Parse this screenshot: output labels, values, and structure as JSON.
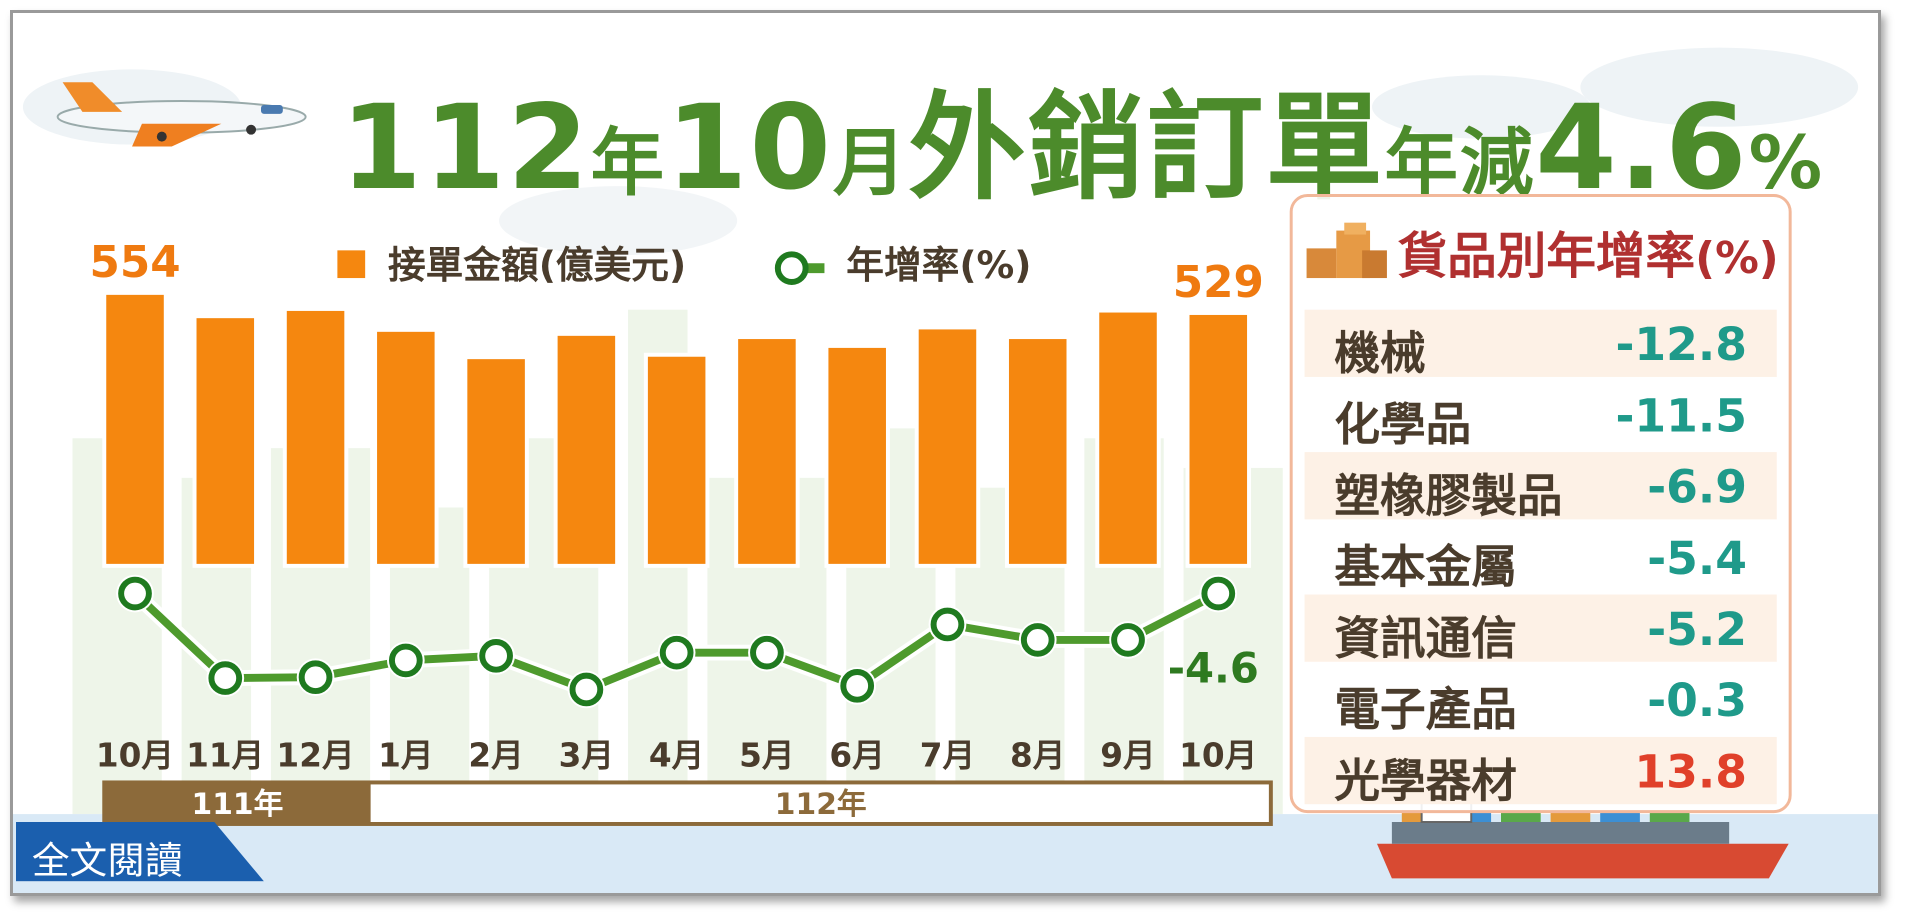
{
  "title": {
    "part1": "112",
    "part2": "年",
    "part3": "10",
    "part4": "月",
    "part5": "外銷訂單",
    "part6": "年減",
    "part7": "4.6",
    "part8": "%"
  },
  "legend": {
    "bar_label": "接單金額(億美元)",
    "line_label": "年增率(%)"
  },
  "chart_data": {
    "type": "bar",
    "categories": [
      "10月",
      "11月",
      "12月",
      "1月",
      "2月",
      "3月",
      "4月",
      "5月",
      "6月",
      "7月",
      "8月",
      "9月",
      "10月"
    ],
    "series": [
      {
        "name": "接單金額(億美元)",
        "values": [
          554,
          525,
          534,
          508,
          474,
          503,
          477,
          499,
          488,
          511,
          499,
          532,
          529
        ]
      },
      {
        "name": "年增率(%)",
        "values": [
          -4.6,
          -23.2,
          -23.0,
          -19.3,
          -18.3,
          -25.7,
          -17.6,
          -17.6,
          -24.9,
          -11.4,
          -14.8,
          -14.8,
          -4.6
        ]
      }
    ],
    "value_labels": {
      "first": "554",
      "last": "529",
      "last_rate": "-4.6"
    },
    "year_groups": [
      {
        "label": "111年",
        "span": 3
      },
      {
        "label": "112年",
        "span": 10
      }
    ],
    "colors": {
      "bar": "#f5870f",
      "line": "#4e9a2d",
      "marker": "#1f7a1f",
      "year_dark": "#8c6a3a",
      "year_border": "#8c6a3a",
      "year_text_light": "#8c6a3a"
    }
  },
  "panel": {
    "title": "貨品別年增率",
    "title_unit": "(%)",
    "items": [
      {
        "name": "機械",
        "value": "-12.8",
        "color": "#1f9a8a"
      },
      {
        "name": "化學品",
        "value": "-11.5",
        "color": "#1f9a8a"
      },
      {
        "name": "塑橡膠製品",
        "value": "-6.9",
        "color": "#1f9a8a"
      },
      {
        "name": "基本金屬",
        "value": "-5.4",
        "color": "#1f9a8a"
      },
      {
        "name": "資訊通信",
        "value": "-5.2",
        "color": "#1f9a8a"
      },
      {
        "name": "電子產品",
        "value": "-0.3",
        "color": "#1f9a8a"
      },
      {
        "name": "光學器材",
        "value": "13.8",
        "color": "#e0402a"
      }
    ]
  },
  "read_button": {
    "label": "全文閱讀"
  }
}
